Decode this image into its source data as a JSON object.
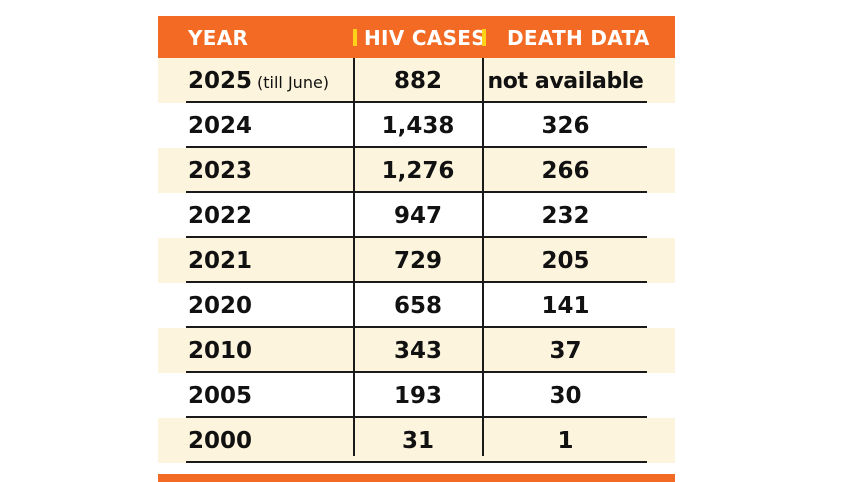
{
  "chart_data": {
    "type": "table",
    "columns": [
      "YEAR",
      "HIV CASES",
      "DEATH  DATA"
    ],
    "rows": [
      {
        "year": "2025",
        "note": "(till June)",
        "hiv_cases": "882",
        "deaths": "not available"
      },
      {
        "year": "2024",
        "note": "",
        "hiv_cases": "1,438",
        "deaths": "326"
      },
      {
        "year": "2023",
        "note": "",
        "hiv_cases": "1,276",
        "deaths": "266"
      },
      {
        "year": "2022",
        "note": "",
        "hiv_cases": "947",
        "deaths": "232"
      },
      {
        "year": "2021",
        "note": "",
        "hiv_cases": "729",
        "deaths": "205"
      },
      {
        "year": "2020",
        "note": "",
        "hiv_cases": "658",
        "deaths": "141"
      },
      {
        "year": "2010",
        "note": "",
        "hiv_cases": "343",
        "deaths": "37"
      },
      {
        "year": "2005",
        "note": "",
        "hiv_cases": "193",
        "deaths": "30"
      },
      {
        "year": "2000",
        "note": "",
        "hiv_cases": "31",
        "deaths": "1"
      }
    ]
  },
  "colors": {
    "header_bg": "#f26a24",
    "header_text": "#ffffff",
    "separator": "#ffd21a",
    "row_shade": "#fcf4dc",
    "rule": "#1a1a1a"
  }
}
